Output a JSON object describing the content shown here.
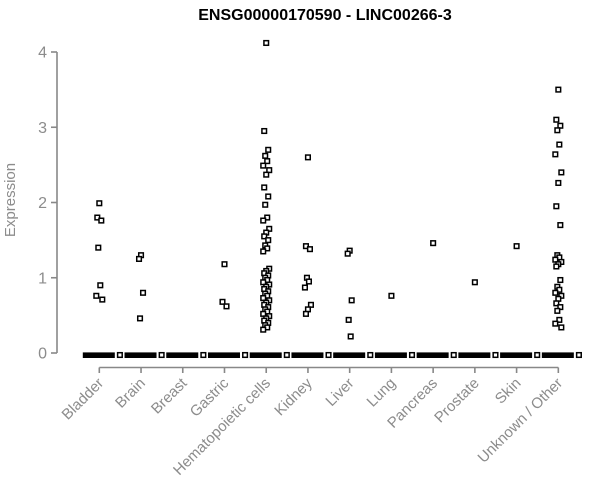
{
  "chart_data": {
    "type": "scatter",
    "subtype": "strip-plot",
    "title": "ENSG00000170590 - LINC00266-3",
    "xlabel": "",
    "ylabel": "Expression",
    "ylim": [
      0,
      4
    ],
    "yticks": [
      "0",
      "1",
      "2",
      "3",
      "4"
    ],
    "grid": false,
    "legend": "none",
    "marker": "open-square",
    "colors": {
      "point": "#000000",
      "axis": "#888888",
      "tick_label": "#8c8c8c",
      "title": "#000000",
      "background": "#ffffff"
    },
    "categories": [
      "Bladder",
      "Brain",
      "Breast",
      "Gastric",
      "Hematopoietic cells",
      "Kidney",
      "Liver",
      "Lung",
      "Pancreas",
      "Prostate",
      "Skin",
      "Unknown / Other"
    ],
    "series": [
      {
        "name": "Bladder",
        "zero_cluster": true,
        "values": [
          1.99,
          1.8,
          1.76,
          1.4,
          0.9,
          0.76,
          0.71
        ]
      },
      {
        "name": "Brain",
        "zero_cluster": true,
        "values": [
          1.3,
          1.25,
          0.8,
          0.46
        ]
      },
      {
        "name": "Breast",
        "zero_cluster": true,
        "values": []
      },
      {
        "name": "Gastric",
        "zero_cluster": true,
        "values": [
          1.18,
          0.68,
          0.62
        ]
      },
      {
        "name": "Hematopoietic cells",
        "zero_cluster": true,
        "values": [
          4.12,
          2.95,
          2.7,
          2.62,
          2.55,
          2.49,
          2.43,
          2.37,
          2.2,
          2.08,
          1.97,
          1.8,
          1.76,
          1.65,
          1.6,
          1.55,
          1.5,
          1.43,
          1.39,
          1.35,
          1.12,
          1.09,
          1.06,
          1.03,
          1.0,
          0.97,
          0.94,
          0.91,
          0.88,
          0.85,
          0.82,
          0.79,
          0.76,
          0.73,
          0.7,
          0.67,
          0.64,
          0.61,
          0.58,
          0.55,
          0.52,
          0.49,
          0.46,
          0.43,
          0.4,
          0.37,
          0.34,
          0.31
        ]
      },
      {
        "name": "Kidney",
        "zero_cluster": true,
        "values": [
          2.6,
          1.42,
          1.38,
          1.0,
          0.95,
          0.87,
          0.64,
          0.58,
          0.52
        ]
      },
      {
        "name": "Liver",
        "zero_cluster": true,
        "values": [
          1.36,
          1.32,
          0.7,
          0.44,
          0.22
        ]
      },
      {
        "name": "Lung",
        "zero_cluster": true,
        "values": [
          0.76
        ]
      },
      {
        "name": "Pancreas",
        "zero_cluster": true,
        "values": [
          1.46
        ]
      },
      {
        "name": "Prostate",
        "zero_cluster": true,
        "values": [
          0.94
        ]
      },
      {
        "name": "Skin",
        "zero_cluster": true,
        "values": [
          1.42
        ]
      },
      {
        "name": "Unknown / Other",
        "zero_cluster": true,
        "values": [
          3.5,
          3.1,
          3.02,
          2.96,
          2.77,
          2.64,
          2.4,
          2.26,
          1.95,
          1.7,
          1.3,
          1.27,
          1.24,
          1.21,
          1.18,
          1.15,
          0.97,
          0.88,
          0.84,
          0.8,
          0.76,
          0.72,
          0.66,
          0.61,
          0.56,
          0.44,
          0.39,
          0.34
        ]
      }
    ]
  }
}
